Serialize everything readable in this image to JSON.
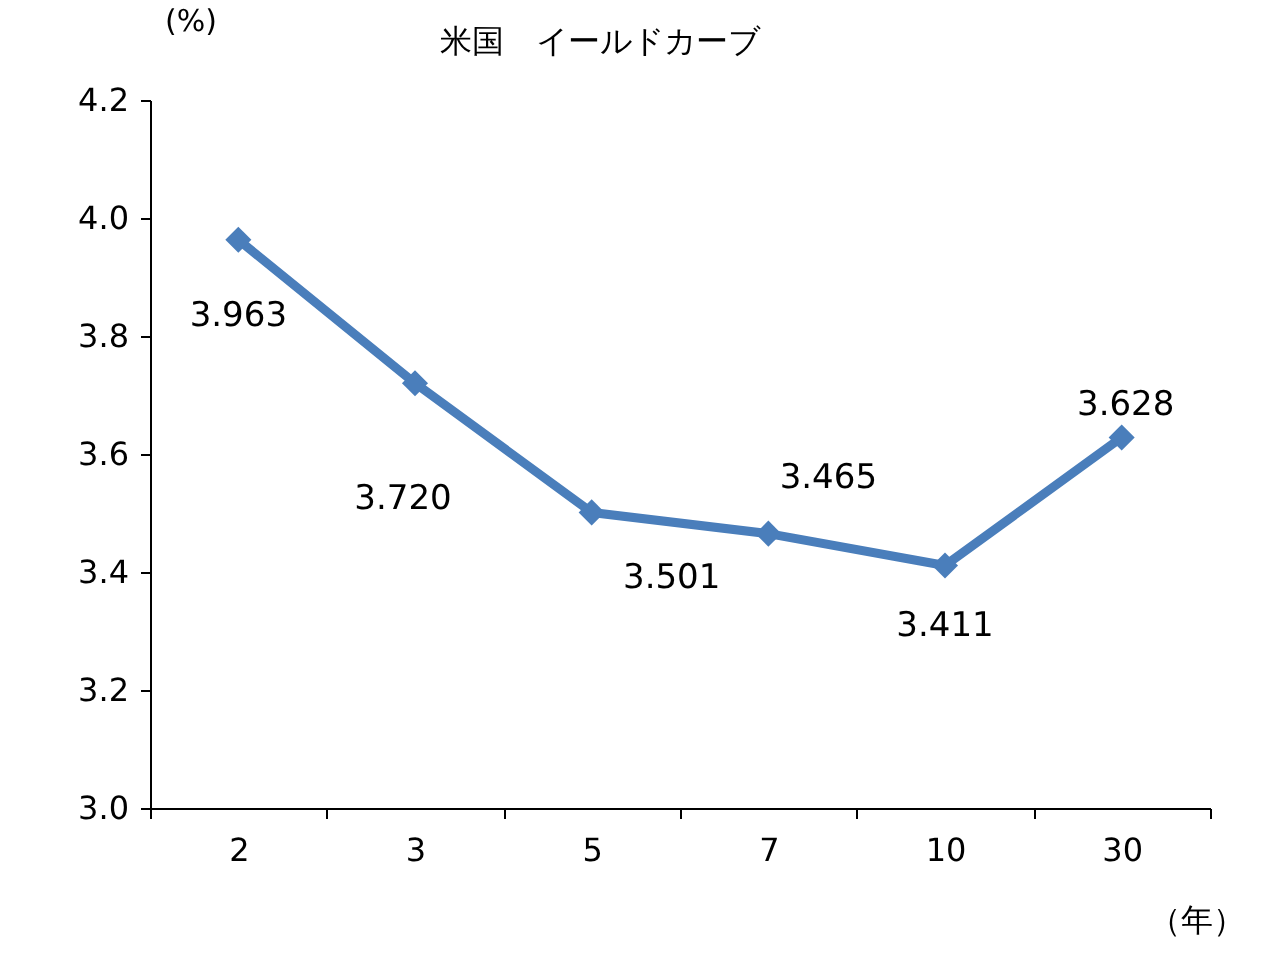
{
  "chart_data": {
    "type": "line",
    "title": "米国　イールドカーブ",
    "ylabel": "(%)",
    "xlabel": "（年）",
    "categories": [
      "2",
      "3",
      "5",
      "7",
      "10",
      "30"
    ],
    "series": [
      {
        "color": "#4a7ebb",
        "values": [
          3.963,
          3.72,
          3.501,
          3.465,
          3.411,
          3.628
        ]
      }
    ],
    "ylim": [
      3.0,
      4.2
    ],
    "yticks": [
      {
        "value": 3.0,
        "label": "3.0"
      },
      {
        "value": 3.2,
        "label": "3.2"
      },
      {
        "value": 3.4,
        "label": "3.4"
      },
      {
        "value": 3.6,
        "label": "3.6"
      },
      {
        "value": 3.8,
        "label": "3.8"
      },
      {
        "value": 4.0,
        "label": "4.0"
      },
      {
        "value": 4.2,
        "label": "4.2"
      }
    ],
    "value_labels": [
      "3.963",
      "3.720",
      "3.501",
      "3.465",
      "3.411",
      "3.628"
    ],
    "marker": "diamond",
    "line_style": "solid"
  }
}
